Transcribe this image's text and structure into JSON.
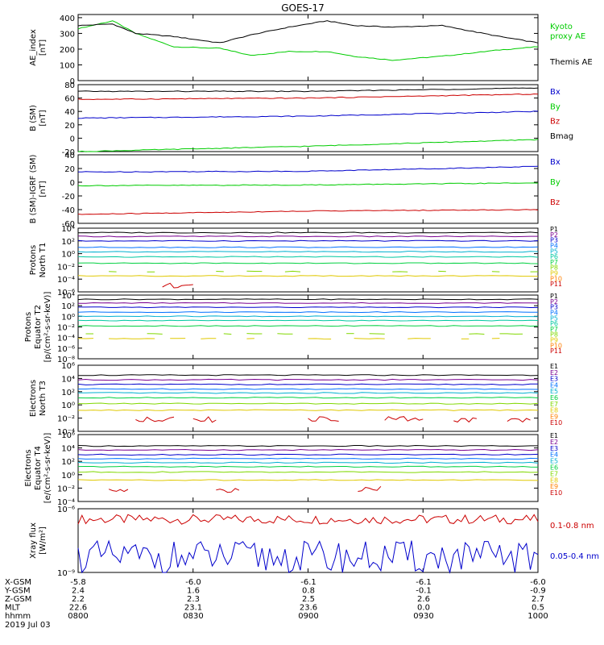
{
  "title": "GOES-17",
  "x_ticks": [
    "0800",
    "0830",
    "0900",
    "0930",
    "1000"
  ],
  "footer": {
    "rows": [
      {
        "label": "X-GSM",
        "values": [
          "-5.8",
          "-6.0",
          "-6.1",
          "-6.1",
          "-6.0"
        ]
      },
      {
        "label": "Y-GSM",
        "values": [
          "2.4",
          "1.6",
          "0.8",
          "-0.1",
          "-0.9"
        ]
      },
      {
        "label": "Z-GSM",
        "values": [
          "2.2",
          "2.3",
          "2.5",
          "2.6",
          "2.7"
        ]
      },
      {
        "label": "MLT",
        "values": [
          "22.6",
          "23.1",
          "23.6",
          "0.0",
          "0.5"
        ]
      },
      {
        "label": "hhmm",
        "values": [
          "0800",
          "0830",
          "0900",
          "0930",
          "1000"
        ]
      }
    ],
    "date": "2019 Jul 03"
  },
  "colors": {
    "black": "#000000",
    "green": "#00cc00",
    "blue": "#0000cc",
    "red": "#cc0000",
    "p": [
      "#000000",
      "#7a0090",
      "#0000cc",
      "#0070ff",
      "#00b0d0",
      "#00c8a0",
      "#00d040",
      "#80d800",
      "#e0c800",
      "#ff8000",
      "#cc0000"
    ]
  },
  "chart_data": [
    {
      "type": "line",
      "id": "ae",
      "ylabel": "AE_index\n[nT]",
      "ylim": [
        0,
        420
      ],
      "yticks": [
        "0",
        "100",
        "200",
        "300",
        "400"
      ],
      "legend": [
        "Kyoto\nproxy AE",
        "Themis AE"
      ],
      "x": [
        "08:00",
        "08:09",
        "08:15",
        "08:25",
        "08:37",
        "08:45",
        "08:55",
        "09:05",
        "09:12",
        "09:22",
        "09:35",
        "09:50",
        "10:00"
      ],
      "series": [
        {
          "name": "Kyoto proxy AE",
          "values": [
            330,
            380,
            300,
            215,
            205,
            160,
            185,
            185,
            155,
            130,
            155,
            195,
            215
          ]
        },
        {
          "name": "Themis AE",
          "values": [
            350,
            360,
            300,
            280,
            240,
            290,
            340,
            380,
            350,
            340,
            350,
            280,
            240
          ]
        }
      ]
    },
    {
      "type": "line",
      "id": "b_sm",
      "ylabel": "B (SM)\n[nT]",
      "ylim": [
        -20,
        80
      ],
      "yticks": [
        "80",
        "60",
        "40",
        "20",
        "0",
        "-20"
      ],
      "legend": [
        "Bx",
        "By",
        "Bz",
        "Bmag"
      ],
      "x": [
        "08:00",
        "09:00",
        "10:00"
      ],
      "series": [
        {
          "name": "Bx",
          "values": [
            30,
            33,
            40
          ]
        },
        {
          "name": "By",
          "values": [
            -20,
            -12,
            -2
          ]
        },
        {
          "name": "Bz",
          "values": [
            58,
            60,
            66
          ]
        },
        {
          "name": "Bmag",
          "values": [
            70,
            70,
            75
          ]
        }
      ]
    },
    {
      "type": "line",
      "id": "b_igrf",
      "ylabel": "B (SM)-IGRF (SM)\n[nT]",
      "ylim": [
        -60,
        40
      ],
      "yticks": [
        "40",
        "20",
        "0",
        "-20",
        "-40",
        "-60"
      ],
      "legend": [
        "Bx",
        "By",
        "Bz"
      ],
      "x": [
        "08:00",
        "09:00",
        "10:00"
      ],
      "series": [
        {
          "name": "Bx",
          "values": [
            15,
            16,
            23
          ]
        },
        {
          "name": "By",
          "values": [
            -5,
            -4,
            -1
          ]
        },
        {
          "name": "Bz",
          "values": [
            -47,
            -42,
            -40
          ]
        }
      ]
    },
    {
      "type": "line",
      "id": "prot_t1",
      "ylabel": "Protons\nNorth T1",
      "ylim_log10": [
        -6,
        4
      ],
      "yticks": [
        "10⁴",
        "10²",
        "10⁰",
        "10⁻²",
        "10⁻⁴",
        "10⁻⁶"
      ],
      "legend": [
        "P1",
        "P2",
        "P3",
        "P4",
        "P5",
        "P6",
        "P7",
        "P8",
        "P9",
        "P10",
        "P11"
      ],
      "log10_levels": [
        3.3,
        2.7,
        2.0,
        1.0,
        0.3,
        -0.5,
        -1.5,
        -2.8,
        -3.5,
        -5.0,
        -5.8
      ]
    },
    {
      "type": "line",
      "id": "prot_t2",
      "ylabel": "Protons\nEquator T2\n[p/(cm²-s-sr-keV)]",
      "ylim_log10": [
        -8,
        4
      ],
      "yticks": [
        "10⁴",
        "10²",
        "10⁰",
        "10⁻²",
        "10⁻⁴",
        "10⁻⁶",
        "10⁻⁸"
      ],
      "legend": [
        "P1",
        "P2",
        "P3",
        "P4",
        "P5",
        "P6",
        "P7",
        "P8",
        "P9",
        "P10",
        "P11"
      ],
      "log10_levels": [
        3.2,
        2.5,
        1.7,
        0.8,
        0,
        -0.8,
        -1.8,
        -3.3,
        -4.2,
        -6,
        -7
      ]
    },
    {
      "type": "line",
      "id": "elec_t3",
      "ylabel": "Electrons\nNorth T3",
      "ylim_log10": [
        -4,
        6
      ],
      "yticks": [
        "10⁶",
        "10⁴",
        "10²",
        "10⁰",
        "10⁻²",
        "10⁻⁴"
      ],
      "legend": [
        "E1",
        "E2",
        "E3",
        "E4",
        "E5",
        "E6",
        "E7",
        "E8",
        "E9",
        "E10"
      ],
      "log10_levels": [
        4.5,
        3.8,
        3.1,
        2.4,
        1.8,
        1.1,
        0.2,
        -0.8,
        -2.2,
        -3.4
      ]
    },
    {
      "type": "line",
      "id": "elec_t4",
      "ylabel": "Electrons\nEquator T4\n[e/(cm²-s-sr-keV)]",
      "ylim_log10": [
        -4,
        6
      ],
      "yticks": [
        "10⁶",
        "10⁴",
        "10²",
        "10⁰",
        "10⁻²",
        "10⁻⁴"
      ],
      "legend": [
        "E1",
        "E2",
        "E3",
        "E4",
        "E5",
        "E6",
        "E7",
        "E8",
        "E9",
        "E10"
      ],
      "log10_levels": [
        4.3,
        3.7,
        3.0,
        2.4,
        1.8,
        1.2,
        0.4,
        -0.8,
        -2.2,
        -3.4
      ]
    },
    {
      "type": "line",
      "id": "xray",
      "ylabel": "Xray flux\n[W/m²]",
      "ylim_log10": [
        -9,
        -6
      ],
      "yticks": [
        "10⁻⁶",
        "10⁻⁹"
      ],
      "legend": [
        "0.1-0.8 nm",
        "0.05-0.4 nm"
      ],
      "series": [
        {
          "name": "0.1-0.8 nm",
          "level_log10": -6.5
        },
        {
          "name": "0.05-0.4 nm",
          "level_log10": -8.3
        }
      ]
    }
  ]
}
